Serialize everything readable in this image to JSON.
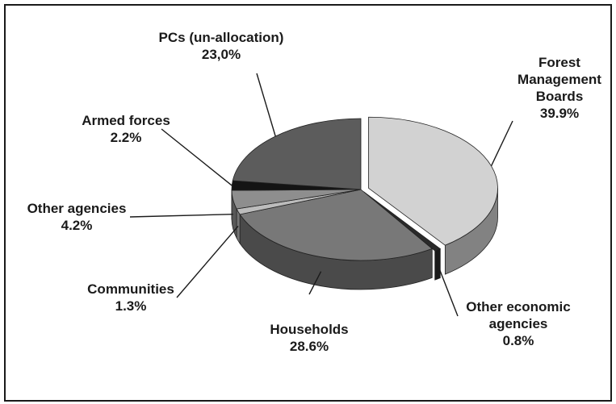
{
  "chart_data": {
    "type": "pie",
    "title": "",
    "legend": "none",
    "slices": [
      {
        "key": "fmb",
        "label_lines": [
          "Forest",
          "Management",
          "Boards"
        ],
        "value": 39.9,
        "display": "39.9%",
        "color": "#d2d2d2"
      },
      {
        "key": "oea",
        "label_lines": [
          "Other economic",
          "agencies"
        ],
        "value": 0.8,
        "display": "0.8%",
        "color": "#2a2a2a"
      },
      {
        "key": "hh",
        "label_lines": [
          "Households"
        ],
        "value": 28.6,
        "display": "28.6%",
        "color": "#787878"
      },
      {
        "key": "com",
        "label_lines": [
          "Communities"
        ],
        "value": 1.3,
        "display": "1.3%",
        "color": "#bcbcbc"
      },
      {
        "key": "oa",
        "label_lines": [
          "Other agencies"
        ],
        "value": 4.2,
        "display": "4.2%",
        "color": "#8e8e8e"
      },
      {
        "key": "af",
        "label_lines": [
          "Armed forces"
        ],
        "value": 2.2,
        "display": "2.2%",
        "color": "#141414"
      },
      {
        "key": "pcs",
        "label_lines": [
          "PCs (un-allocation)"
        ],
        "value": 23.0,
        "display": "23,0%",
        "color": "#5c5c5c"
      }
    ]
  }
}
